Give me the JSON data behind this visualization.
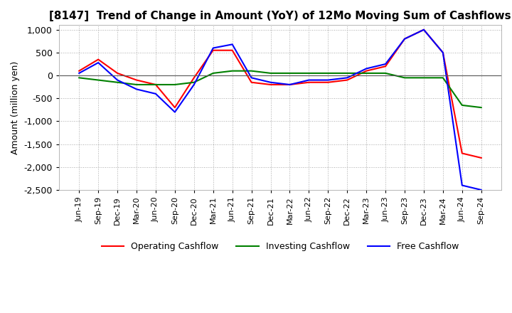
{
  "title": "[8147]  Trend of Change in Amount (YoY) of 12Mo Moving Sum of Cashflows",
  "ylabel": "Amount (million yen)",
  "ylim": [
    -2500,
    1100
  ],
  "yticks": [
    1000,
    500,
    0,
    -500,
    -1000,
    -1500,
    -2000,
    -2500
  ],
  "x_labels": [
    "Jun-19",
    "Sep-19",
    "Dec-19",
    "Mar-20",
    "Jun-20",
    "Sep-20",
    "Dec-20",
    "Mar-21",
    "Jun-21",
    "Sep-21",
    "Dec-21",
    "Mar-22",
    "Jun-22",
    "Sep-22",
    "Dec-22",
    "Mar-23",
    "Jun-23",
    "Sep-23",
    "Dec-23",
    "Mar-24",
    "Jun-24",
    "Sep-24"
  ],
  "operating": [
    100,
    350,
    50,
    -100,
    -200,
    -700,
    -50,
    550,
    550,
    -150,
    -200,
    -200,
    -150,
    -150,
    -100,
    100,
    200,
    800,
    1000,
    500,
    -1700,
    -1800
  ],
  "investing": [
    -50,
    -100,
    -150,
    -200,
    -200,
    -200,
    -150,
    50,
    100,
    100,
    50,
    50,
    50,
    50,
    50,
    50,
    50,
    -50,
    -50,
    -50,
    -650,
    -700
  ],
  "free": [
    50,
    280,
    -100,
    -300,
    -400,
    -800,
    -200,
    600,
    680,
    -50,
    -150,
    -200,
    -100,
    -100,
    -50,
    150,
    250,
    800,
    1000,
    500,
    -2400,
    -2500
  ],
  "operating_color": "#ff0000",
  "investing_color": "#008000",
  "free_color": "#0000ff",
  "line_width": 1.5,
  "background_color": "#ffffff",
  "title_fontsize": 11,
  "legend_labels": [
    "Operating Cashflow",
    "Investing Cashflow",
    "Free Cashflow"
  ]
}
